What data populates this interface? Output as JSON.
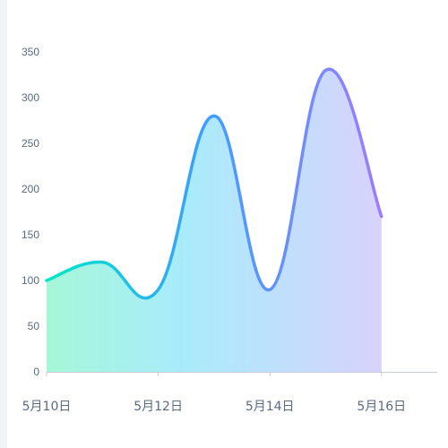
{
  "chart_data": {
    "type": "area",
    "title": "",
    "xlabel": "",
    "ylabel": "",
    "x_ticks": [
      "5月10日",
      "5月12日",
      "5月14日",
      "5月16日"
    ],
    "y_ticks": [
      "0",
      "50",
      "100",
      "150",
      "200",
      "250",
      "300",
      "350"
    ],
    "ylim": [
      0,
      350
    ],
    "series": [
      {
        "x": [
          "5月10日",
          "5月11日",
          "5月12日",
          "5月13日",
          "5月14日",
          "5月15日",
          "5月16日"
        ],
        "values": [
          100,
          120,
          90,
          280,
          90,
          330,
          170
        ]
      }
    ],
    "smooth": true,
    "grid": false,
    "colors": {
      "gradient_start": "#00e8c8",
      "gradient_mid": "#3aa0ff",
      "gradient_end": "#9c7cff",
      "axis": "#c8ccd4"
    }
  }
}
